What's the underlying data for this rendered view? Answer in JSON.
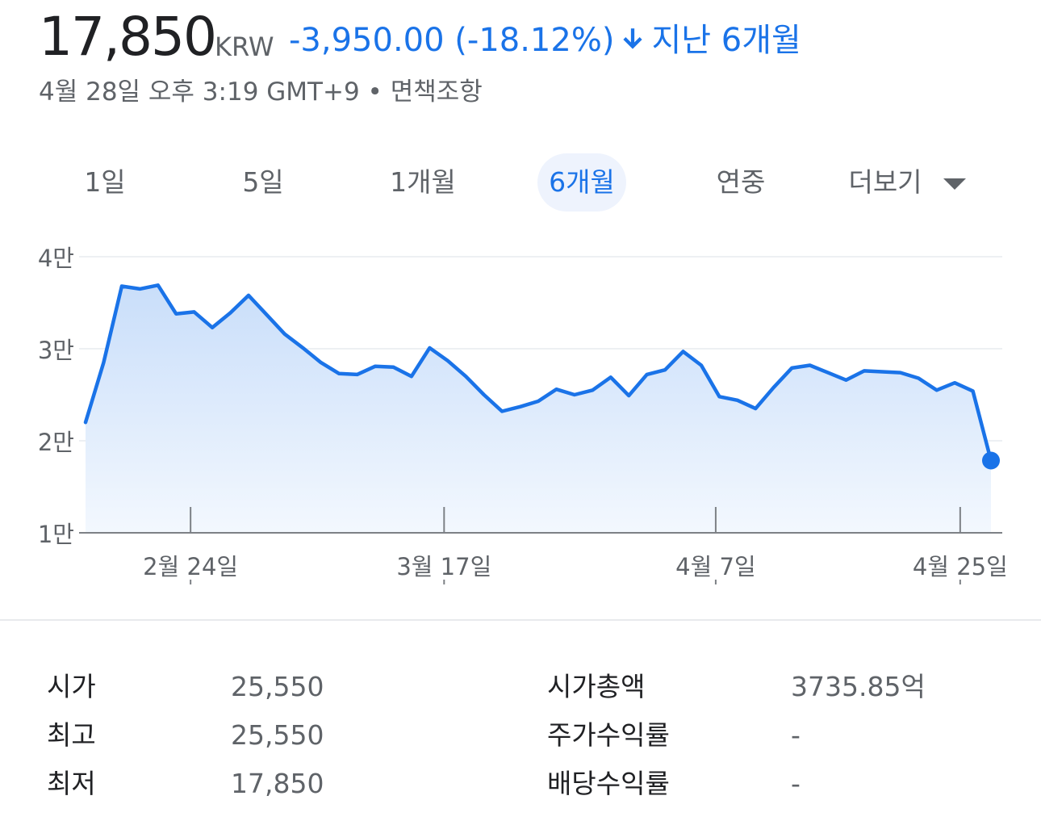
{
  "header": {
    "price": "17,850",
    "currency": "KRW",
    "change": "-3,950.00 (-18.12%)",
    "period": "지난 6개월",
    "timestamp": "4월 28일 오후 3:19 GMT+9",
    "separator": "•",
    "disclaimer": "면책조항",
    "arrow_icon": "arrow-down-icon",
    "accent_color": "#1a73e8"
  },
  "tabs": {
    "items": [
      {
        "label": "1일"
      },
      {
        "label": "5일"
      },
      {
        "label": "1개월"
      },
      {
        "label": "6개월"
      },
      {
        "label": "연중"
      },
      {
        "label": "더보기"
      }
    ],
    "active": "6개월",
    "more_icon": "caret-down-icon"
  },
  "chart_data": {
    "type": "area",
    "y_tick_labels": [
      "4만",
      "3만",
      "2만",
      "1만"
    ],
    "y_ticks": [
      40000,
      30000,
      20000,
      10000
    ],
    "x_tick_labels": [
      "2월 24일",
      "3월 17일",
      "4월 7일",
      "4월 25일"
    ],
    "x_tick_positions": [
      5.8,
      19.8,
      34.8,
      48.3
    ],
    "ylim": [
      10000,
      40000
    ],
    "xlim": [
      0,
      50
    ],
    "grid": true,
    "line_color": "#1a73e8",
    "values": [
      22000,
      28500,
      36800,
      36500,
      36900,
      33800,
      34000,
      32300,
      33900,
      35800,
      33700,
      31600,
      30100,
      28500,
      27300,
      27200,
      28100,
      28000,
      27000,
      30100,
      28700,
      27000,
      25000,
      23200,
      23700,
      24300,
      25600,
      25000,
      25500,
      26900,
      24900,
      27200,
      27700,
      29700,
      28200,
      24800,
      24400,
      23500,
      25800,
      27900,
      28200,
      27400,
      26600,
      27600,
      27500,
      27400,
      26800,
      25500,
      26300,
      25400,
      17850
    ]
  },
  "stats": {
    "left": [
      {
        "label": "시가",
        "value": "25,550"
      },
      {
        "label": "최고",
        "value": "25,550"
      },
      {
        "label": "최저",
        "value": "17,850"
      }
    ],
    "right": [
      {
        "label": "시가총액",
        "value": "3735.85억"
      },
      {
        "label": "주가수익률",
        "value": "-"
      },
      {
        "label": "배당수익률",
        "value": "-"
      }
    ]
  }
}
